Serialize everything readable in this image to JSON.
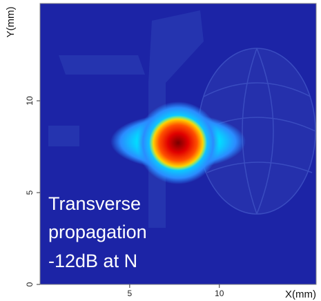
{
  "chart_data": {
    "type": "heatmap",
    "x_label": "X(mm)",
    "y_label": "Y(mm)",
    "xlim": [
      0,
      15.4
    ],
    "ylim": [
      0,
      15.3
    ],
    "xticks": [
      5,
      10
    ],
    "yticks": [
      0,
      5,
      10
    ],
    "annotation": [
      "Transverse",
      "propagation",
      "-12dB at N"
    ]
  }
}
